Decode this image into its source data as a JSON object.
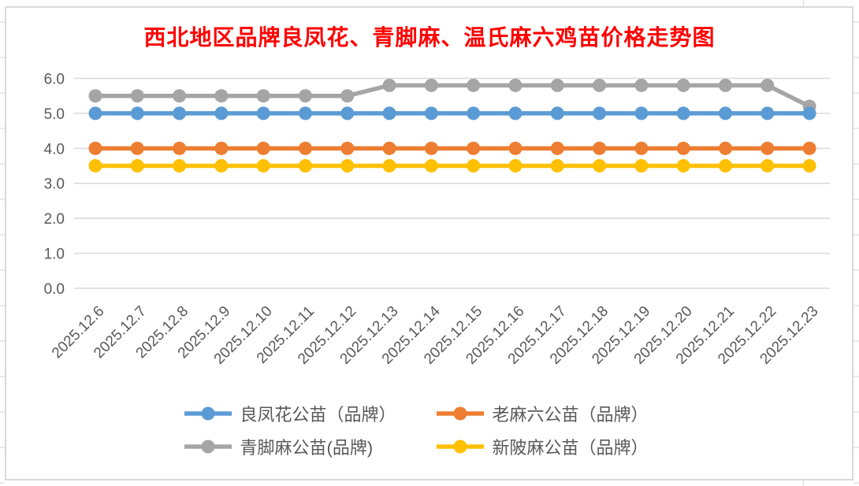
{
  "chart_data": {
    "type": "line",
    "title": "西北地区品牌良凤花、青脚麻、温氏麻六鸡苗价格走势图",
    "title_color": "#FF0000",
    "categories": [
      "2025.12.6",
      "2025.12.7",
      "2025.12.8",
      "2025.12.9",
      "2025.12.10",
      "2025.12.11",
      "2025.12.12",
      "2025.12.13",
      "2025.12.14",
      "2025.12.15",
      "2025.12.16",
      "2025.12.17",
      "2025.12.18",
      "2025.12.19",
      "2025.12.20",
      "2025.12.21",
      "2025.12.22",
      "2025.12.23"
    ],
    "series": [
      {
        "name": "良凤花公苗（品牌）",
        "color": "#5B9BD5",
        "values": [
          5.0,
          5.0,
          5.0,
          5.0,
          5.0,
          5.0,
          5.0,
          5.0,
          5.0,
          5.0,
          5.0,
          5.0,
          5.0,
          5.0,
          5.0,
          5.0,
          5.0,
          5.0
        ]
      },
      {
        "name": "老麻六公苗（品牌）",
        "color": "#ED7D31",
        "values": [
          4.0,
          4.0,
          4.0,
          4.0,
          4.0,
          4.0,
          4.0,
          4.0,
          4.0,
          4.0,
          4.0,
          4.0,
          4.0,
          4.0,
          4.0,
          4.0,
          4.0,
          4.0
        ]
      },
      {
        "name": "青脚麻公苗(品牌)",
        "color": "#A5A5A5",
        "values": [
          5.5,
          5.5,
          5.5,
          5.5,
          5.5,
          5.5,
          5.5,
          5.8,
          5.8,
          5.8,
          5.8,
          5.8,
          5.8,
          5.8,
          5.8,
          5.8,
          5.8,
          5.2
        ]
      },
      {
        "name": "新陂麻公苗（品牌）",
        "color": "#FFC000",
        "values": [
          3.5,
          3.5,
          3.5,
          3.5,
          3.5,
          3.5,
          3.5,
          3.5,
          3.5,
          3.5,
          3.5,
          3.5,
          3.5,
          3.5,
          3.5,
          3.5,
          3.5,
          3.5
        ]
      }
    ],
    "xlabel": "",
    "ylabel": "",
    "ylim": [
      0,
      6
    ],
    "ytick_labels": [
      "0.0",
      "1.0",
      "2.0",
      "3.0",
      "4.0",
      "5.0",
      "6.0"
    ],
    "grid": true,
    "legend_position": "bottom",
    "draw_order": [
      2,
      0,
      1,
      3
    ],
    "axis_text_color": "#595959",
    "gridline_color": "#D9D9D9",
    "frame_border_color": "#D9D9D9",
    "sheet_line_color": "#E2E2E2",
    "background": "#FFFFFF"
  }
}
